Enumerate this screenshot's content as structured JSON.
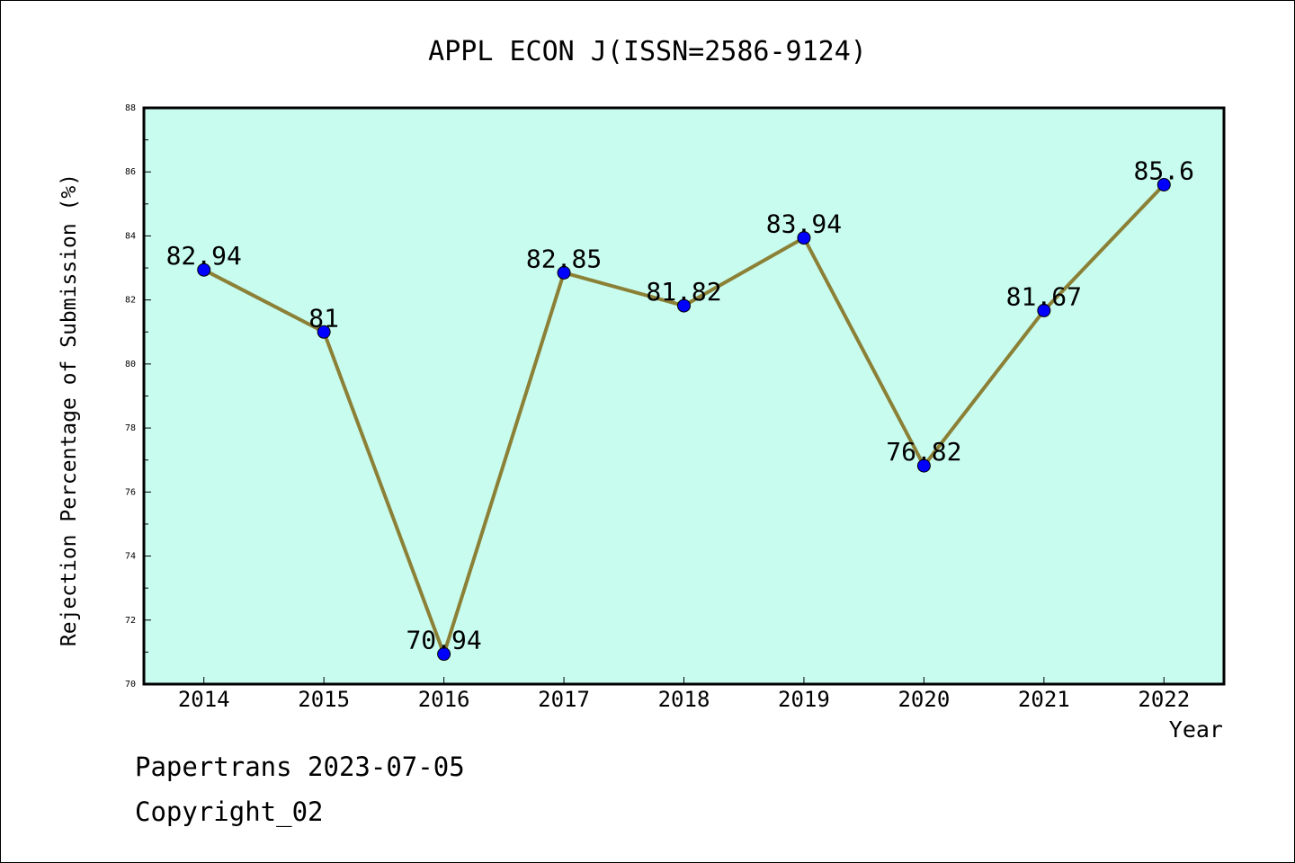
{
  "chart_data": {
    "type": "line",
    "title": "APPL ECON J(ISSN=2586-9124)",
    "xlabel": "Year",
    "ylabel": "Rejection Percentage of Submission (%)",
    "categories": [
      "2014",
      "2015",
      "2016",
      "2017",
      "2018",
      "2019",
      "2020",
      "2021",
      "2022"
    ],
    "values": [
      82.94,
      81,
      70.94,
      82.85,
      81.82,
      83.94,
      76.82,
      81.67,
      85.6
    ],
    "value_labels": [
      "82.94",
      "81",
      "70.94",
      "82.85",
      "81.82",
      "83.94",
      "76.82",
      "81.67",
      "85.6"
    ],
    "ylim": [
      70,
      88
    ],
    "yticks": [
      70,
      72,
      74,
      76,
      78,
      80,
      82,
      84,
      86,
      88
    ],
    "grid": false,
    "colors": {
      "plot_background": "#c8fcee",
      "line": "#8b8036",
      "marker": "#0000ff"
    }
  },
  "footer": {
    "line1": "Papertrans 2023-07-05",
    "line2": "Copyright_02"
  }
}
